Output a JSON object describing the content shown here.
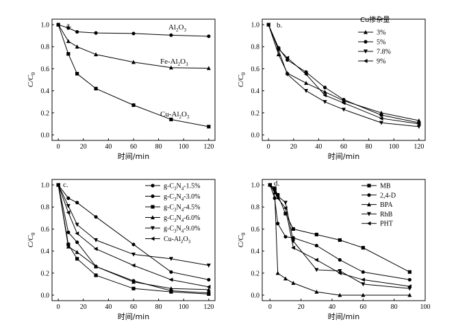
{
  "chart_data": [
    {
      "type": "line",
      "panel": "a.",
      "xlabel": "时间/min",
      "ylabel": "C/C0",
      "xlim": [
        -5,
        125
      ],
      "ylim": [
        -0.05,
        1.05
      ],
      "xticks": [
        0,
        20,
        40,
        60,
        80,
        100,
        120
      ],
      "yticks": [
        0.0,
        0.2,
        0.4,
        0.6,
        0.8,
        1.0
      ],
      "x": [
        0,
        8,
        15,
        30,
        60,
        90,
        120
      ],
      "series": [
        {
          "name": "Al2O3",
          "marker": "circle",
          "values": [
            1.0,
            0.97,
            0.935,
            0.925,
            0.92,
            0.905,
            0.895
          ]
        },
        {
          "name": "Fe-Al2O3",
          "marker": "triangle-up",
          "values": [
            1.0,
            0.85,
            0.8,
            0.73,
            0.66,
            0.61,
            0.605
          ]
        },
        {
          "name": "Cu-Al2O3",
          "marker": "square",
          "values": [
            1.0,
            0.735,
            0.555,
            0.42,
            0.27,
            0.14,
            0.075
          ]
        }
      ],
      "annotations": [
        "Al2O3",
        "Fe-Al2O3",
        "Cu-Al2O3"
      ]
    },
    {
      "type": "line",
      "panel": "b.",
      "xlabel": "时间/min",
      "ylabel": "C/C0",
      "xlim": [
        -5,
        125
      ],
      "ylim": [
        -0.05,
        1.05
      ],
      "xticks": [
        0,
        20,
        40,
        60,
        80,
        100,
        120
      ],
      "yticks": [
        0.0,
        0.2,
        0.4,
        0.6,
        0.8,
        1.0
      ],
      "legend_title": "Cu掺杂量",
      "legend_position": "top-right",
      "x": [
        0,
        8,
        15,
        30,
        45,
        60,
        90,
        120
      ],
      "series": [
        {
          "name": "3%",
          "marker": "triangle-up",
          "values": [
            1.0,
            0.73,
            0.56,
            0.47,
            0.39,
            0.31,
            0.2,
            0.13
          ]
        },
        {
          "name": "5%",
          "marker": "circle",
          "values": [
            1.0,
            0.79,
            0.68,
            0.57,
            0.43,
            0.32,
            0.18,
            0.11
          ]
        },
        {
          "name": "7.8%",
          "marker": "triangle-down",
          "values": [
            1.0,
            0.77,
            0.55,
            0.4,
            0.3,
            0.23,
            0.11,
            0.075
          ]
        },
        {
          "name": "9%",
          "marker": "triangle-left",
          "values": [
            1.0,
            0.78,
            0.7,
            0.55,
            0.36,
            0.29,
            0.15,
            0.1
          ]
        }
      ]
    },
    {
      "type": "line",
      "panel": "c.",
      "xlabel": "时间/min",
      "ylabel": "C/C0",
      "xlim": [
        -5,
        125
      ],
      "ylim": [
        -0.05,
        1.05
      ],
      "xticks": [
        0,
        20,
        40,
        60,
        80,
        100,
        120
      ],
      "yticks": [
        0.0,
        0.2,
        0.4,
        0.6,
        0.8,
        1.0
      ],
      "legend_position": "top-right",
      "x": [
        0,
        8,
        15,
        30,
        60,
        90,
        120
      ],
      "series": [
        {
          "name": "g-C3N4-1.5%",
          "marker": "circle",
          "values": [
            1.0,
            0.88,
            0.84,
            0.71,
            0.46,
            0.21,
            0.14
          ]
        },
        {
          "name": "g-C3N4-3.0%",
          "marker": "circle",
          "values": [
            1.0,
            0.57,
            0.48,
            0.26,
            0.13,
            0.04,
            0.02
          ]
        },
        {
          "name": "g-C3N4-4.5%",
          "marker": "square",
          "values": [
            1.0,
            0.46,
            0.33,
            0.18,
            0.06,
            0.03,
            0.01
          ]
        },
        {
          "name": "g-C3N4-6.0%",
          "marker": "triangle-up",
          "values": [
            1.0,
            0.44,
            0.39,
            0.26,
            0.12,
            0.06,
            0.05
          ]
        },
        {
          "name": "g-C3N4-9.0%",
          "marker": "triangle-down",
          "values": [
            1.0,
            0.81,
            0.64,
            0.5,
            0.37,
            0.33,
            0.27
          ]
        },
        {
          "name": "Cu-Al2O3",
          "marker": "triangle-left",
          "values": [
            1.0,
            0.75,
            0.56,
            0.42,
            0.27,
            0.14,
            0.075
          ]
        }
      ]
    },
    {
      "type": "line",
      "panel": "d.",
      "xlabel": "时间/min",
      "ylabel": "C/C0",
      "xlim": [
        -5,
        100
      ],
      "ylim": [
        -0.05,
        1.05
      ],
      "xticks": [
        0,
        20,
        40,
        60,
        80,
        100
      ],
      "yticks": [
        0.0,
        0.2,
        0.4,
        0.6,
        0.8,
        1.0
      ],
      "legend_position": "top-right",
      "series": [
        {
          "name": "MB",
          "marker": "square",
          "x": [
            0,
            3,
            5,
            10,
            15,
            30,
            45,
            60,
            90
          ],
          "values": [
            1.0,
            0.97,
            0.91,
            0.74,
            0.6,
            0.55,
            0.5,
            0.43,
            0.21
          ]
        },
        {
          "name": "2,4-D",
          "marker": "circle",
          "x": [
            0,
            3,
            5,
            10,
            15,
            30,
            45,
            60,
            90
          ],
          "values": [
            1.0,
            0.88,
            0.65,
            0.53,
            0.52,
            0.45,
            0.32,
            0.21,
            0.14
          ]
        },
        {
          "name": "BPA",
          "marker": "triangle-up",
          "x": [
            0,
            3,
            5,
            10,
            15,
            30,
            45,
            60,
            90
          ],
          "values": [
            1.0,
            0.93,
            0.2,
            0.15,
            0.11,
            0.03,
            0.0,
            0.0,
            0.0
          ]
        },
        {
          "name": "RhB",
          "marker": "triangle-down",
          "x": [
            0,
            3,
            5,
            10,
            15,
            30,
            45,
            60,
            90
          ],
          "values": [
            1.0,
            0.95,
            0.9,
            0.84,
            0.49,
            0.23,
            0.22,
            0.1,
            0.06
          ]
        },
        {
          "name": "PHT",
          "marker": "triangle-left",
          "x": [
            0,
            3,
            5,
            10,
            15,
            30,
            45,
            60,
            90
          ],
          "values": [
            1.0,
            0.95,
            0.88,
            0.79,
            0.43,
            0.32,
            0.2,
            0.14,
            0.08
          ]
        }
      ]
    }
  ]
}
